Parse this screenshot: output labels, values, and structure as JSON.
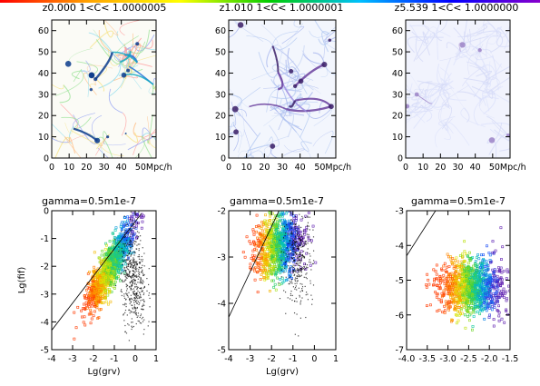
{
  "colors": {
    "topbar": [
      "#ff0000",
      "#ffa500",
      "#ffff00",
      "#00cc00",
      "#00c0ff",
      "#0000ff",
      "#8800cc"
    ],
    "top_panel_palettes": [
      [
        "#ff9a9a",
        "#ffc08a",
        "#f6e38a",
        "#9fe39b",
        "#8fdcee",
        "#9aa8f4",
        "#1c6fd8",
        "#10a8c0",
        "#0b3b8c"
      ],
      [
        "#b7ccf2",
        "#c9d7f5",
        "#a7b6ee",
        "#9d8ee0",
        "#6a3f9e",
        "#3b1f66"
      ],
      [
        "#dde2fb",
        "#d4d9f6",
        "#c9bde8",
        "#b9a6da",
        "#9c84c7"
      ]
    ],
    "scatter_gradient": [
      "#ff3a00",
      "#ff8c00",
      "#e6e600",
      "#3ccf3c",
      "#00c4c4",
      "#1050ff",
      "#6020b0"
    ]
  },
  "panels_top": [
    {
      "title": "z0.000  1<C< 1.0000005"
    },
    {
      "title": "z1.010  1<C< 1.0000001"
    },
    {
      "title": "z5.539  1<C< 1.0000000"
    }
  ],
  "panels_bottom": [
    {
      "title": "gamma=0.5m1e-7"
    },
    {
      "title": "gamma=0.5m1e-7"
    },
    {
      "title": "gamma=0.5m1e-7"
    }
  ],
  "chart_data": [
    {
      "type": "heatmap",
      "title": "z0.000  1<C< 1.0000005",
      "x": {
        "range": [
          0,
          60
        ],
        "ticks": [
          0,
          10,
          20,
          30,
          40
        ],
        "last_tick_label": "50Mpc/h"
      },
      "y": {
        "range": [
          0,
          65
        ],
        "ticks": [
          0,
          10,
          20,
          30,
          40,
          50,
          60
        ]
      }
    },
    {
      "type": "heatmap",
      "title": "z1.010  1<C< 1.0000001",
      "x": {
        "range": [
          0,
          60
        ],
        "ticks": [
          0,
          10,
          20,
          30,
          40
        ],
        "last_tick_label": "50Mpc/h"
      },
      "y": {
        "range": [
          0,
          65
        ],
        "ticks": [
          0,
          10,
          20,
          30,
          40,
          50,
          60
        ]
      }
    },
    {
      "type": "heatmap",
      "title": "z5.539  1<C< 1.0000000",
      "x": {
        "range": [
          0,
          60
        ],
        "ticks": [
          0,
          10,
          20,
          30,
          40
        ],
        "last_tick_label": "50Mpc/h"
      },
      "y": {
        "range": [
          0,
          65
        ],
        "ticks": [
          0,
          10,
          20,
          30,
          40,
          50,
          60
        ]
      }
    },
    {
      "type": "scatter",
      "title": "gamma=0.5m1e-7",
      "xlabel": "Lg(grv)",
      "ylabel": "Lg(fif)",
      "xlim": [
        -4,
        1
      ],
      "ylim": [
        -5,
        0
      ],
      "xticks": [
        -4,
        -3,
        -2,
        -1,
        0,
        1
      ],
      "xticklabels": [
        "-4",
        "-3",
        "-2",
        "-1",
        "0",
        "1"
      ],
      "yticks": [
        -5,
        -4,
        -3,
        -2,
        -1,
        0
      ],
      "yticklabels": [
        "-5",
        "-4",
        "-3",
        "-2",
        "-1",
        "0"
      ],
      "line": [
        [
          -4,
          -4.3
        ],
        [
          0.3,
          -0.1
        ]
      ],
      "clusters": [
        {
          "name": "colored",
          "xc": -1.1,
          "yc": -1.9,
          "sx": 0.55,
          "sy": 0.75,
          "n": 1000,
          "corr": 0.85
        },
        {
          "name": "colored-core",
          "xc": -1.8,
          "yc": -2.7,
          "sx": 0.25,
          "sy": 0.35,
          "n": 250,
          "corr": 0.6
        },
        {
          "name": "black",
          "xc": -0.1,
          "yc": -2.4,
          "sx": 0.3,
          "sy": 0.95,
          "n": 500,
          "corr": -0.2
        }
      ]
    },
    {
      "type": "scatter",
      "title": "gamma=0.5m1e-7",
      "xlabel": "Lg(grv)",
      "ylabel": "",
      "xlim": [
        -4,
        1
      ],
      "ylim": [
        -5,
        -2
      ],
      "xticks": [
        -4,
        -3,
        -2,
        -1,
        0,
        1
      ],
      "xticklabels": [
        "-4",
        "-3",
        "-2",
        "-1",
        "0",
        "1"
      ],
      "yticks": [
        -5,
        -4,
        -3,
        -2
      ],
      "yticklabels": [
        "-5",
        "-4",
        "-3",
        "-2"
      ],
      "line": [
        [
          -4,
          -4.3
        ],
        [
          -1.6,
          -1.95
        ]
      ],
      "clusters": [
        {
          "name": "colored",
          "xc": -1.7,
          "yc": -2.75,
          "sx": 0.55,
          "sy": 0.35,
          "n": 1000,
          "corr": 0.2
        },
        {
          "name": "black",
          "xc": -0.8,
          "yc": -3.0,
          "sx": 0.35,
          "sy": 0.5,
          "n": 350,
          "corr": 0.0
        }
      ]
    },
    {
      "type": "scatter",
      "title": "gamma=0.5m1e-7",
      "xlabel": "",
      "ylabel": "",
      "xlim": [
        -4,
        -1.5
      ],
      "ylim": [
        -7,
        -3
      ],
      "xticks": [
        -4,
        -3.5,
        -3,
        -2.5,
        -2,
        -1.5
      ],
      "xticklabels": [
        "-4.0",
        "-3.5",
        "-3.0",
        "-2.5",
        "-2.0",
        "-1.5"
      ],
      "yticks": [
        -7,
        -6,
        -5,
        -4,
        -3
      ],
      "yticklabels": [
        "-7",
        "-6",
        "-5",
        "-4",
        "-3"
      ],
      "line": [
        [
          -4,
          -4.3
        ],
        [
          -3.3,
          -3.0
        ]
      ],
      "clusters": [
        {
          "name": "colored",
          "xc": -2.45,
          "yc": -5.2,
          "sx": 0.38,
          "sy": 0.4,
          "n": 1200,
          "corr": 0.0
        }
      ]
    }
  ]
}
